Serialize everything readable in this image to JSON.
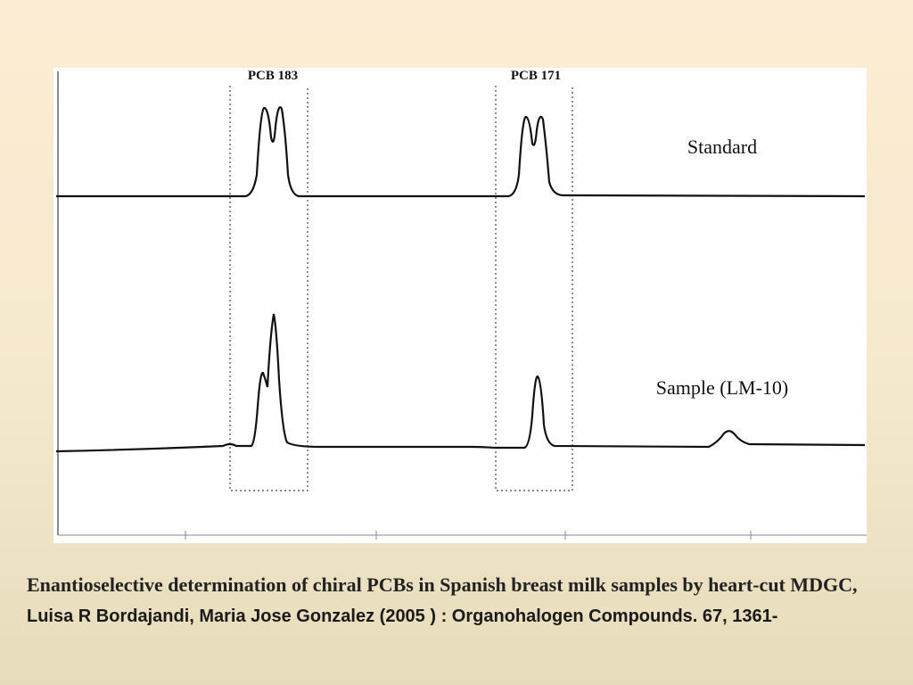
{
  "figure": {
    "labels": [
      "PCB 183",
      "PCB 171",
      "Standard",
      "Sample (LM-10)"
    ]
  },
  "caption": {
    "title": "Enantioselective determination of chiral PCBs in Spanish breast milk samples by heart-cut MDGC,",
    "citation": "Luisa R Bordajandi, Maria Jose Gonzalez (2005 ) : Organohalogen Compounds. 67, 1361-"
  }
}
